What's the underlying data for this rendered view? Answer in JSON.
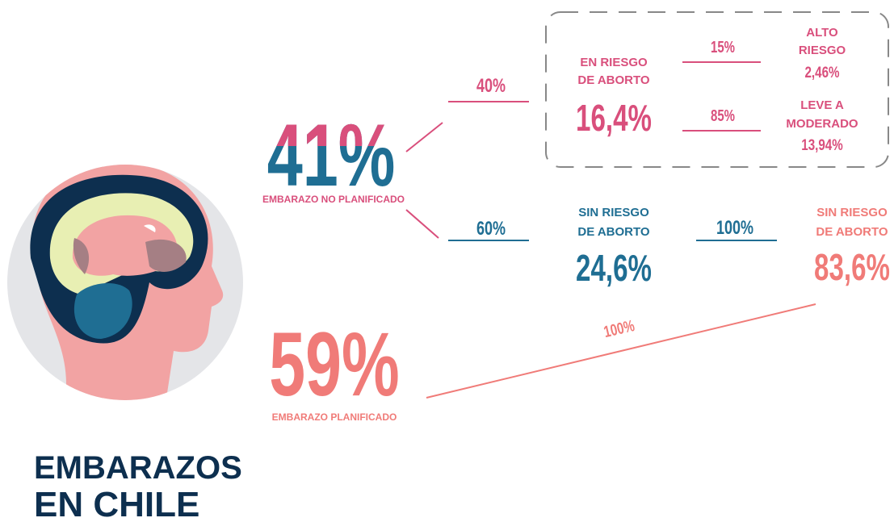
{
  "title": [
    "EMBARAZOS",
    "EN CHILE"
  ],
  "unplanned": {
    "value": "41%",
    "label": "EMBARAZO NO PLANIFICADO"
  },
  "planned": {
    "value": "59%",
    "label": "EMBARAZO PLANIFICADO"
  },
  "at_risk": {
    "share": "40%",
    "label": [
      "EN RIESGO",
      "DE ABORTO"
    ],
    "value": "16,4%"
  },
  "high_risk": {
    "share": "15%",
    "label": [
      "ALTO",
      "RIESGO"
    ],
    "value": "2,46%"
  },
  "mild_risk": {
    "share": "85%",
    "label": [
      "LEVE A",
      "MODERADO"
    ],
    "value": "13,94%"
  },
  "no_risk": {
    "share": "60%",
    "label": [
      "SIN RIESGO",
      "DE ABORTO"
    ],
    "value": "24,6%"
  },
  "no_risk_total": {
    "share": "100%",
    "label": [
      "SIN RIESGO",
      "DE ABORTO"
    ],
    "value": "83,6%"
  },
  "planned_link": "100%"
}
